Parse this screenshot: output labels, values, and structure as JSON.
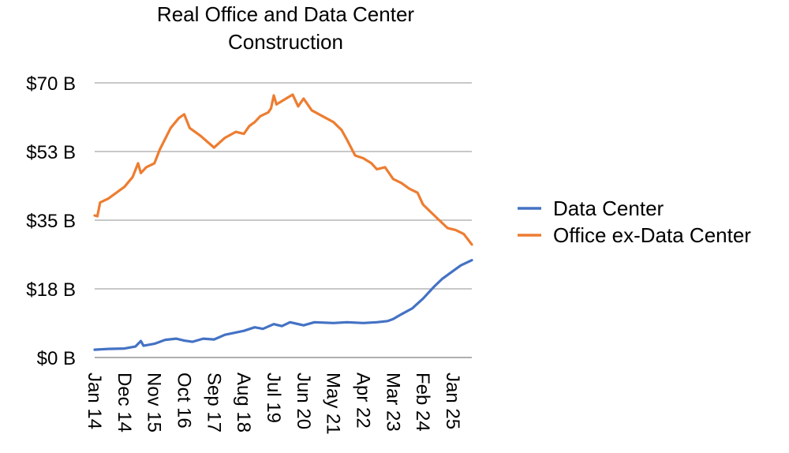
{
  "chart_data": {
    "type": "line",
    "title_lines": [
      "Real Office and Data Center",
      "Construction"
    ],
    "xlabel": "",
    "ylabel": "",
    "ylim": [
      0,
      70
    ],
    "yticks": [
      0,
      17.5,
      35,
      52.5,
      70
    ],
    "ytick_labels": [
      "$0 B",
      "$18 B",
      "$35 B",
      "$53 B",
      "$70 B"
    ],
    "x_start": "2014-01",
    "x_end": "2025-08",
    "xticks": [
      "2014-01",
      "2014-12",
      "2015-11",
      "2016-10",
      "2017-09",
      "2018-08",
      "2019-07",
      "2020-06",
      "2021-05",
      "2022-04",
      "2023-03",
      "2024-02",
      "2025-01"
    ],
    "xtick_labels": [
      "Jan 14",
      "Dec 14",
      "Nov 15",
      "Oct 16",
      "Sep 17",
      "Aug 18",
      "Jul 19",
      "Jun 20",
      "May 21",
      "Apr 22",
      "Mar 23",
      "Feb 24",
      "Jan 25"
    ],
    "grid": true,
    "legend_position": "right",
    "series": [
      {
        "name": "Data Center",
        "color": "#4472C4",
        "points": [
          [
            "2014-01",
            2.0
          ],
          [
            "2014-06",
            2.2
          ],
          [
            "2014-12",
            2.3
          ],
          [
            "2015-04",
            2.8
          ],
          [
            "2015-06",
            4.2
          ],
          [
            "2015-07",
            3.0
          ],
          [
            "2015-11",
            3.5
          ],
          [
            "2016-03",
            4.5
          ],
          [
            "2016-07",
            4.8
          ],
          [
            "2016-10",
            4.3
          ],
          [
            "2017-01",
            4.0
          ],
          [
            "2017-05",
            4.8
          ],
          [
            "2017-09",
            4.6
          ],
          [
            "2018-01",
            5.8
          ],
          [
            "2018-08",
            6.8
          ],
          [
            "2018-12",
            7.7
          ],
          [
            "2019-03",
            7.3
          ],
          [
            "2019-07",
            8.5
          ],
          [
            "2019-10",
            8.0
          ],
          [
            "2020-01",
            9.0
          ],
          [
            "2020-06",
            8.2
          ],
          [
            "2020-10",
            9.0
          ],
          [
            "2021-05",
            8.8
          ],
          [
            "2021-10",
            9.0
          ],
          [
            "2022-04",
            8.8
          ],
          [
            "2022-09",
            9.0
          ],
          [
            "2023-01",
            9.3
          ],
          [
            "2023-03",
            9.8
          ],
          [
            "2023-06",
            11.0
          ],
          [
            "2023-10",
            12.5
          ],
          [
            "2024-02",
            15.0
          ],
          [
            "2024-06",
            18.0
          ],
          [
            "2024-09",
            20.0
          ],
          [
            "2025-01",
            22.0
          ],
          [
            "2025-04",
            23.5
          ],
          [
            "2025-08",
            24.8
          ]
        ]
      },
      {
        "name": "Office ex-Data Center",
        "color": "#ED7D31",
        "points": [
          [
            "2014-01",
            36.2
          ],
          [
            "2014-02",
            36.0
          ],
          [
            "2014-03",
            39.5
          ],
          [
            "2014-06",
            40.5
          ],
          [
            "2014-09",
            42.0
          ],
          [
            "2014-12",
            43.5
          ],
          [
            "2015-03",
            46.0
          ],
          [
            "2015-05",
            49.5
          ],
          [
            "2015-06",
            47.0
          ],
          [
            "2015-08",
            48.5
          ],
          [
            "2015-11",
            49.5
          ],
          [
            "2016-01",
            53.0
          ],
          [
            "2016-05",
            58.5
          ],
          [
            "2016-08",
            61.0
          ],
          [
            "2016-10",
            62.0
          ],
          [
            "2016-12",
            58.5
          ],
          [
            "2017-04",
            56.5
          ],
          [
            "2017-09",
            53.5
          ],
          [
            "2018-01",
            56.0
          ],
          [
            "2018-05",
            57.5
          ],
          [
            "2018-08",
            57.0
          ],
          [
            "2018-10",
            59.0
          ],
          [
            "2018-12",
            60.0
          ],
          [
            "2019-02",
            61.5
          ],
          [
            "2019-05",
            62.5
          ],
          [
            "2019-06",
            63.5
          ],
          [
            "2019-07",
            66.8
          ],
          [
            "2019-08",
            64.5
          ],
          [
            "2019-12",
            66.2
          ],
          [
            "2020-02",
            67.0
          ],
          [
            "2020-04",
            64.0
          ],
          [
            "2020-06",
            66.0
          ],
          [
            "2020-09",
            63.0
          ],
          [
            "2021-01",
            61.5
          ],
          [
            "2021-05",
            60.0
          ],
          [
            "2021-08",
            58.0
          ],
          [
            "2021-10",
            55.5
          ],
          [
            "2022-01",
            51.5
          ],
          [
            "2022-04",
            50.8
          ],
          [
            "2022-07",
            49.5
          ],
          [
            "2022-09",
            48.0
          ],
          [
            "2022-12",
            48.5
          ],
          [
            "2023-03",
            45.5
          ],
          [
            "2023-06",
            44.5
          ],
          [
            "2023-09",
            43.0
          ],
          [
            "2023-12",
            42.0
          ],
          [
            "2024-02",
            39.0
          ],
          [
            "2024-05",
            37.0
          ],
          [
            "2024-08",
            35.0
          ],
          [
            "2024-11",
            33.0
          ],
          [
            "2025-02",
            32.5
          ],
          [
            "2025-05",
            31.5
          ],
          [
            "2025-08",
            28.8
          ]
        ]
      }
    ]
  }
}
